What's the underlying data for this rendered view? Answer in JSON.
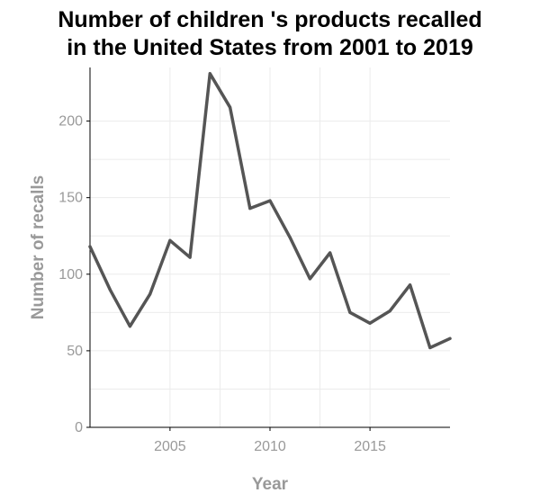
{
  "chart_data": {
    "type": "line",
    "title_lines": [
      "Number of children 's products recalled",
      "in the United States from 2001 to 2019"
    ],
    "xlabel": "Year",
    "ylabel": "Number of recalls",
    "xlim": [
      2001,
      2019
    ],
    "ylim": [
      0,
      235
    ],
    "x_ticks": [
      2005,
      2010,
      2015
    ],
    "y_ticks": [
      0,
      50,
      100,
      150,
      200
    ],
    "grid": true,
    "line_color": "#555555",
    "series": [
      {
        "x": [
          2001,
          2002,
          2003,
          2004,
          2005,
          2006,
          2007,
          2008,
          2009,
          2010,
          2011,
          2012,
          2013,
          2014,
          2015,
          2016,
          2017,
          2018,
          2019
        ],
        "values": [
          118,
          90,
          66,
          87,
          122,
          111,
          231,
          209,
          143,
          148,
          124,
          97,
          114,
          75,
          68,
          76,
          93,
          52,
          58
        ]
      }
    ]
  }
}
